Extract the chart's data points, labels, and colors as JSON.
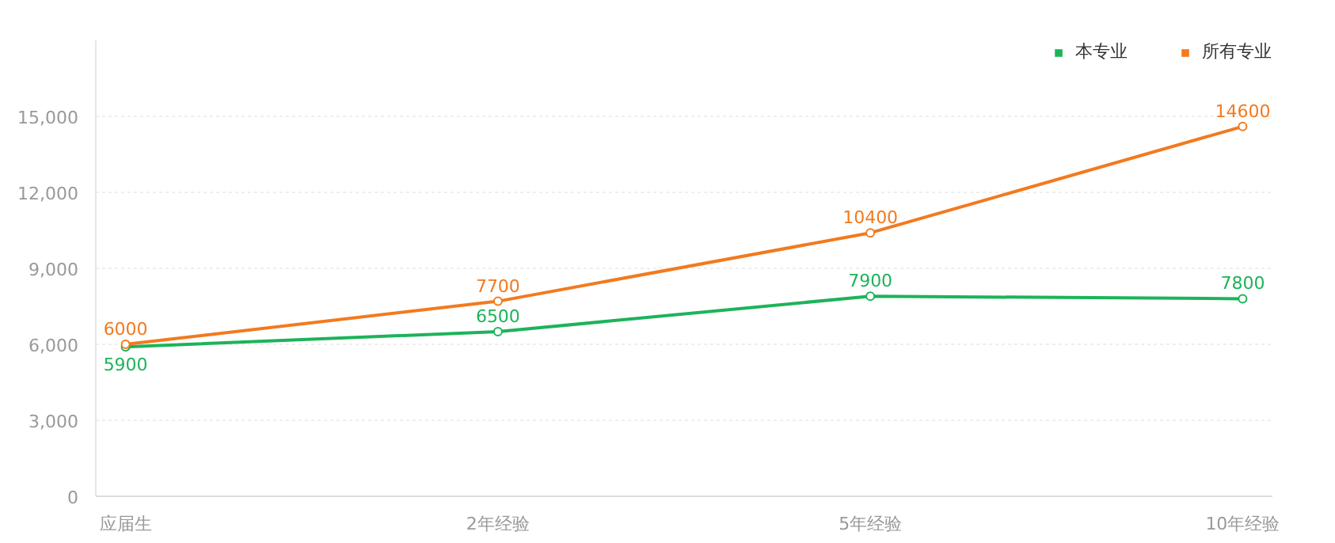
{
  "chart_data": {
    "type": "line",
    "categories": [
      "应届生",
      "2年经验",
      "5年经验",
      "10年经验"
    ],
    "series": [
      {
        "name": "本专业",
        "color": "#1db35a",
        "values": [
          5900,
          6500,
          7900,
          7800
        ]
      },
      {
        "name": "所有专业",
        "color": "#f27a1f",
        "values": [
          6000,
          7700,
          10400,
          14600
        ]
      }
    ],
    "ylim": [
      0,
      18000
    ],
    "yticks": [
      0,
      {
        "value": 3000,
        "label": "3,000"
      },
      {
        "value": 6000,
        "label": "6,000"
      },
      {
        "value": 9000,
        "label": "9,000"
      },
      {
        "value": 12000,
        "label": "12,000"
      },
      {
        "value": 15000,
        "label": "15,000"
      }
    ],
    "grid": "y",
    "legend": "top right",
    "marker": "circle",
    "line_style": "solid",
    "data_labels": true
  }
}
